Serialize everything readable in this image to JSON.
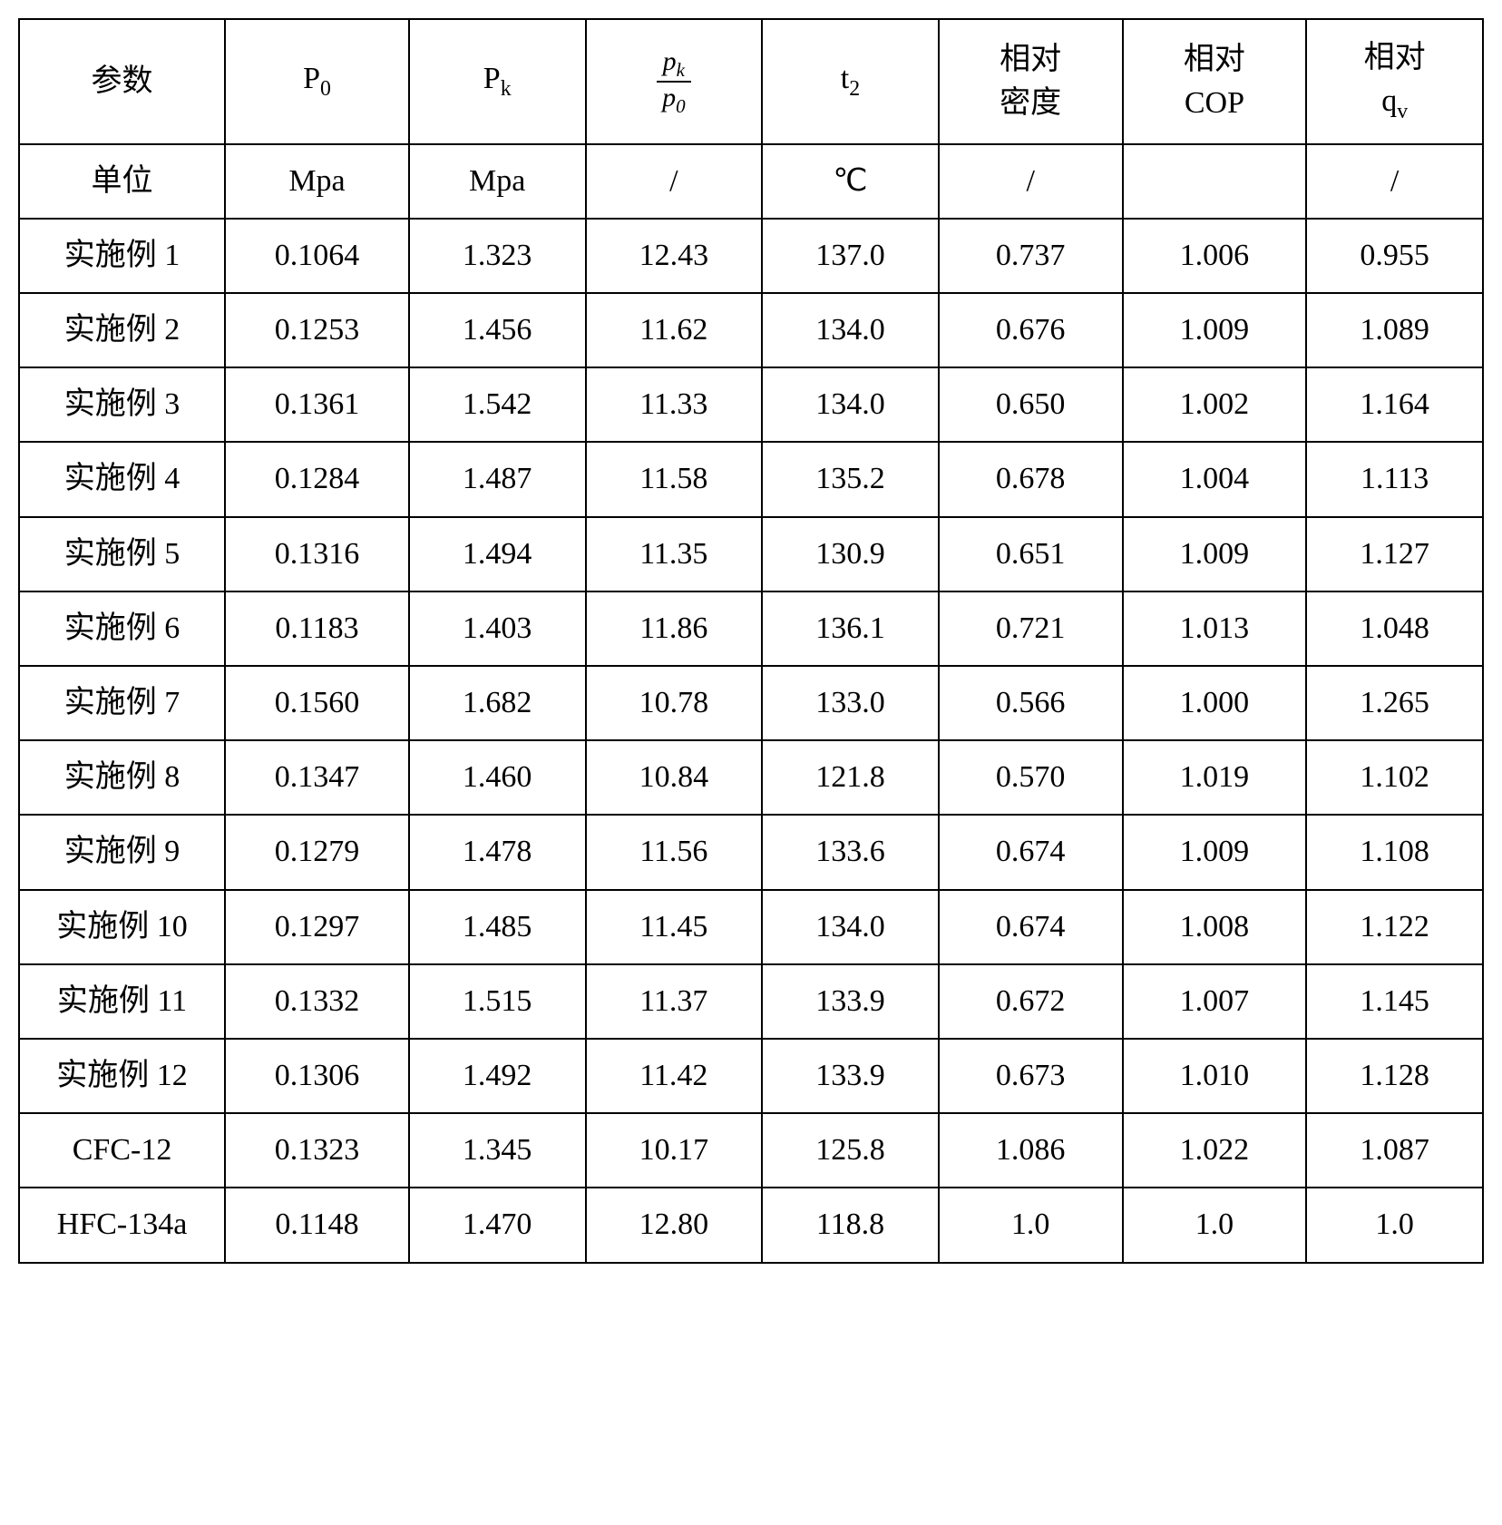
{
  "table": {
    "border_color": "#000000",
    "background_color": "#ffffff",
    "text_color": "#000000",
    "font_size_pt": 26,
    "header": {
      "row1": {
        "c0": "参数",
        "c1_base": "P",
        "c1_sub": "0",
        "c2_base": "P",
        "c2_sub": "k",
        "c3_num_base": "p",
        "c3_num_sub": "k",
        "c3_den_base": "p",
        "c3_den_sub": "0",
        "c4_base": "t",
        "c4_sub": "2",
        "c5_l1": "相对",
        "c5_l2": "密度",
        "c6_l1": "相对",
        "c6_l2": "COP",
        "c7_l1": "相对",
        "c7_base": "q",
        "c7_sub": "v"
      },
      "row2": {
        "c0": "单位",
        "c1": "Mpa",
        "c2": "Mpa",
        "c3": "/",
        "c4": "℃",
        "c5": "/",
        "c6": "",
        "c7": "/"
      }
    },
    "rows": [
      {
        "label": "实施例 1",
        "p0": "0.1064",
        "pk": "1.323",
        "ratio": "12.43",
        "t2": "137.0",
        "dens": "0.737",
        "cop": "1.006",
        "qv": "0.955"
      },
      {
        "label": "实施例 2",
        "p0": "0.1253",
        "pk": "1.456",
        "ratio": "11.62",
        "t2": "134.0",
        "dens": "0.676",
        "cop": "1.009",
        "qv": "1.089"
      },
      {
        "label": "实施例 3",
        "p0": "0.1361",
        "pk": "1.542",
        "ratio": "11.33",
        "t2": "134.0",
        "dens": "0.650",
        "cop": "1.002",
        "qv": "1.164"
      },
      {
        "label": "实施例 4",
        "p0": "0.1284",
        "pk": "1.487",
        "ratio": "11.58",
        "t2": "135.2",
        "dens": "0.678",
        "cop": "1.004",
        "qv": "1.113"
      },
      {
        "label": "实施例 5",
        "p0": "0.1316",
        "pk": "1.494",
        "ratio": "11.35",
        "t2": "130.9",
        "dens": "0.651",
        "cop": "1.009",
        "qv": "1.127"
      },
      {
        "label": "实施例 6",
        "p0": "0.1183",
        "pk": "1.403",
        "ratio": "11.86",
        "t2": "136.1",
        "dens": "0.721",
        "cop": "1.013",
        "qv": "1.048"
      },
      {
        "label": "实施例 7",
        "p0": "0.1560",
        "pk": "1.682",
        "ratio": "10.78",
        "t2": "133.0",
        "dens": "0.566",
        "cop": "1.000",
        "qv": "1.265"
      },
      {
        "label": "实施例 8",
        "p0": "0.1347",
        "pk": "1.460",
        "ratio": "10.84",
        "t2": "121.8",
        "dens": "0.570",
        "cop": "1.019",
        "qv": "1.102"
      },
      {
        "label": "实施例 9",
        "p0": "0.1279",
        "pk": "1.478",
        "ratio": "11.56",
        "t2": "133.6",
        "dens": "0.674",
        "cop": "1.009",
        "qv": "1.108"
      },
      {
        "label": "实施例 10",
        "p0": "0.1297",
        "pk": "1.485",
        "ratio": "11.45",
        "t2": "134.0",
        "dens": "0.674",
        "cop": "1.008",
        "qv": "1.122"
      },
      {
        "label": "实施例 11",
        "p0": "0.1332",
        "pk": "1.515",
        "ratio": "11.37",
        "t2": "133.9",
        "dens": "0.672",
        "cop": "1.007",
        "qv": "1.145"
      },
      {
        "label": "实施例 12",
        "p0": "0.1306",
        "pk": "1.492",
        "ratio": "11.42",
        "t2": "133.9",
        "dens": "0.673",
        "cop": "1.010",
        "qv": "1.128"
      },
      {
        "label": "CFC-12",
        "p0": "0.1323",
        "pk": "1.345",
        "ratio": "10.17",
        "t2": "125.8",
        "dens": "1.086",
        "cop": "1.022",
        "qv": "1.087"
      },
      {
        "label": "HFC-134a",
        "p0": "0.1148",
        "pk": "1.470",
        "ratio": "12.80",
        "t2": "118.8",
        "dens": "1.0",
        "cop": "1.0",
        "qv": "1.0"
      }
    ]
  }
}
